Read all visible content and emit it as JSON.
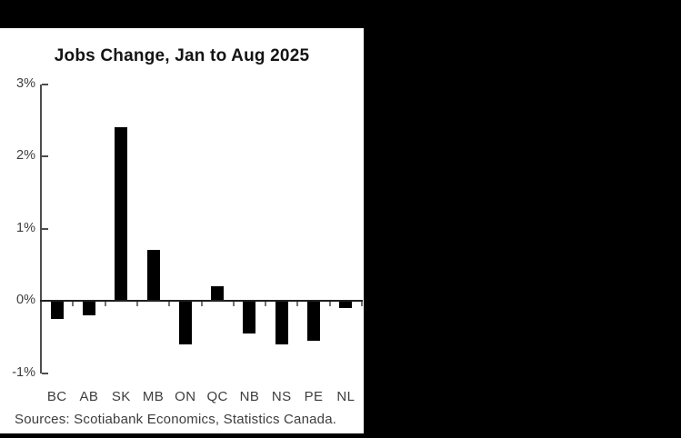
{
  "window": {
    "background_color": "#000000",
    "panel_color": "#ffffff"
  },
  "chart_data": {
    "type": "bar",
    "title": "Jobs Change, Jan to Aug 2025",
    "categories": [
      "BC",
      "AB",
      "SK",
      "MB",
      "ON",
      "QC",
      "NB",
      "NS",
      "PE",
      "NL"
    ],
    "values": [
      -0.25,
      -0.2,
      2.4,
      0.7,
      -0.6,
      0.2,
      -0.45,
      -0.6,
      -0.55,
      -0.1
    ],
    "xlabel": "",
    "ylabel": "",
    "units": "%",
    "y_ticks": [
      3,
      2,
      1,
      0,
      -1
    ],
    "y_tick_labels": [
      "3%",
      "2%",
      "1%",
      "0%",
      "-1%"
    ],
    "ylim": [
      -1,
      3
    ],
    "grid": false,
    "legend": false,
    "bar_color": "#000000",
    "axis_color": "#4d4d4d",
    "baseline_color": "#1f1f1f",
    "tick_color": "#737373",
    "text_color": "#3d3d3d",
    "source": "Sources: Scotiabank Economics, Statistics Canada."
  }
}
